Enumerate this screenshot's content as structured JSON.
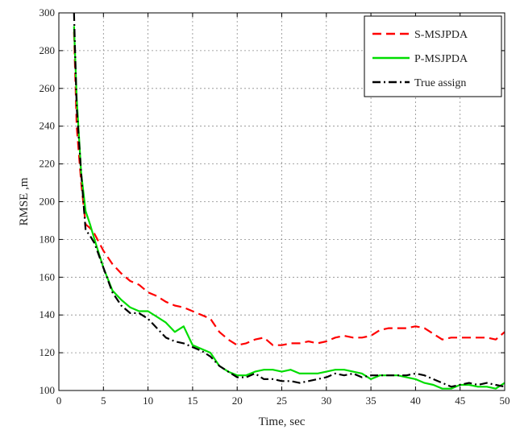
{
  "chart_data": {
    "type": "line",
    "title": "",
    "xlabel": "Time, sec",
    "ylabel": "RMSE ,m",
    "xlim": [
      0,
      50
    ],
    "ylim": [
      100,
      300
    ],
    "xticks": [
      0,
      5,
      10,
      15,
      20,
      25,
      30,
      35,
      40,
      45,
      50
    ],
    "yticks": [
      100,
      120,
      140,
      160,
      180,
      200,
      220,
      240,
      260,
      280,
      300
    ],
    "grid": true,
    "legend_position": "top-right",
    "series": [
      {
        "name": "S-MSJPDA",
        "color": "#ff0000",
        "style": "dashed",
        "x": [
          1.7,
          2,
          2.5,
          3,
          3.5,
          4,
          5,
          6,
          7,
          8,
          9,
          10,
          11,
          12,
          13,
          14,
          15,
          16,
          17,
          18,
          19,
          20,
          21,
          22,
          23,
          24,
          25,
          26,
          27,
          28,
          29,
          30,
          31,
          32,
          33,
          34,
          35,
          36,
          37,
          38,
          39,
          40,
          41,
          42,
          43,
          44,
          45,
          46,
          47,
          48,
          49,
          50
        ],
        "y": [
          290,
          240,
          210,
          188,
          186,
          183,
          174,
          167,
          162,
          158,
          156,
          152,
          150,
          147,
          145,
          144,
          142,
          140,
          138,
          131,
          127,
          124,
          125,
          127,
          128,
          124,
          124,
          125,
          125,
          126,
          125,
          126,
          128,
          129,
          128,
          128,
          129,
          132,
          133,
          133,
          133,
          134,
          133,
          130,
          127,
          128,
          128,
          128,
          128,
          128,
          127,
          131
        ]
      },
      {
        "name": "P-MSJPDA",
        "color": "#00dd00",
        "style": "solid",
        "x": [
          1.7,
          2,
          2.5,
          3,
          3.5,
          4,
          5,
          6,
          7,
          8,
          9,
          10,
          11,
          12,
          13,
          14,
          15,
          16,
          17,
          18,
          19,
          20,
          21,
          22,
          23,
          24,
          25,
          26,
          27,
          28,
          29,
          30,
          31,
          32,
          33,
          34,
          35,
          36,
          37,
          38,
          39,
          40,
          41,
          42,
          43,
          44,
          45,
          46,
          47,
          48,
          49,
          50
        ],
        "y": [
          293,
          255,
          215,
          195,
          188,
          180,
          165,
          153,
          148,
          144,
          142,
          142,
          139,
          136,
          131,
          134,
          124,
          122,
          120,
          113,
          110,
          108,
          108,
          110,
          111,
          111,
          110,
          111,
          109,
          109,
          109,
          110,
          111,
          111,
          110,
          109,
          106,
          108,
          108,
          108,
          107,
          106,
          104,
          103,
          101,
          101,
          103,
          103,
          102,
          102,
          101,
          104
        ]
      },
      {
        "name": "True assign",
        "color": "#000000",
        "style": "dashdot",
        "x": [
          1.7,
          2,
          2.5,
          3,
          3.5,
          4,
          5,
          6,
          7,
          8,
          9,
          10,
          11,
          12,
          13,
          14,
          15,
          16,
          17,
          18,
          19,
          20,
          21,
          22,
          23,
          24,
          25,
          26,
          27,
          28,
          29,
          30,
          31,
          32,
          33,
          34,
          35,
          36,
          37,
          38,
          39,
          40,
          41,
          42,
          43,
          44,
          45,
          46,
          47,
          48,
          49,
          50
        ],
        "y": [
          300,
          250,
          215,
          185,
          182,
          178,
          165,
          152,
          145,
          141,
          141,
          138,
          133,
          128,
          126,
          125,
          123,
          121,
          118,
          113,
          110,
          107,
          107,
          109,
          106,
          106,
          105,
          105,
          104,
          105,
          106,
          107,
          109,
          108,
          109,
          107,
          108,
          108,
          108,
          108,
          108,
          109,
          108,
          106,
          104,
          102,
          103,
          104,
          103,
          104,
          103,
          102
        ]
      }
    ]
  }
}
